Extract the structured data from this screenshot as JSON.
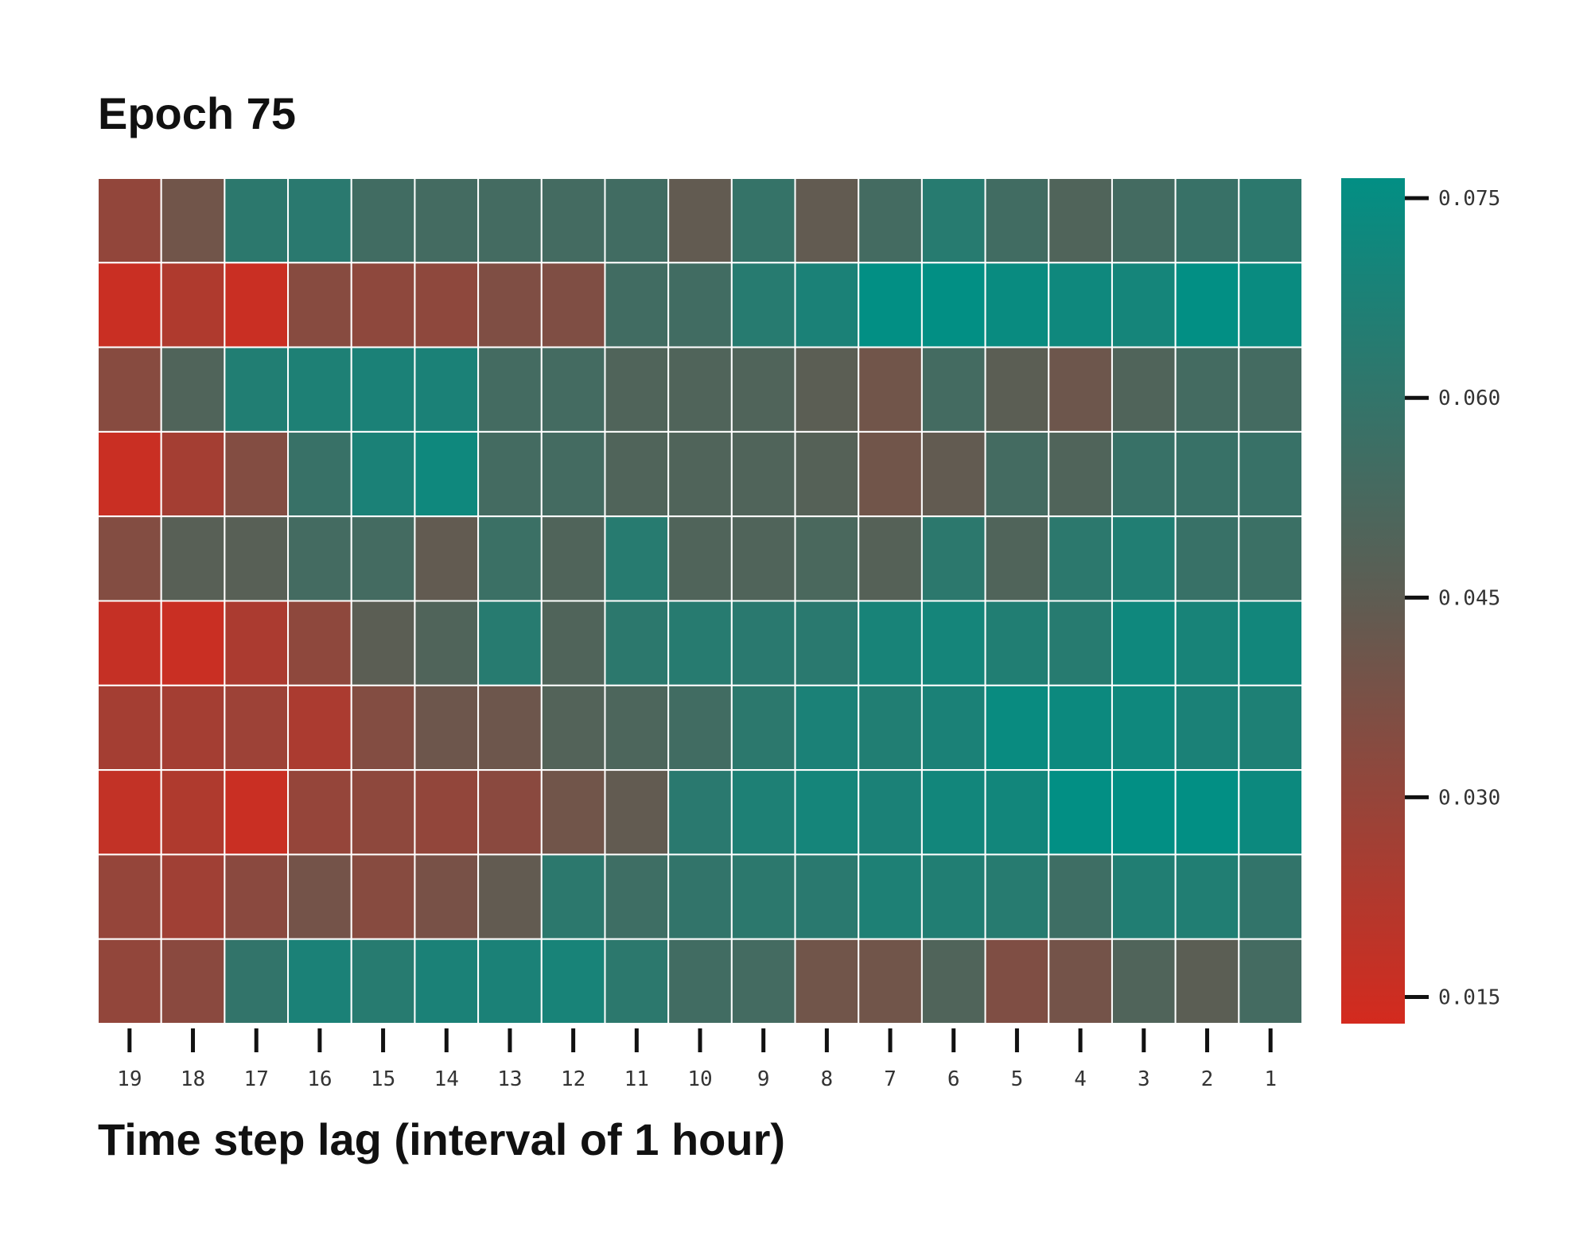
{
  "chart_data": {
    "type": "heatmap",
    "title": "Epoch 75",
    "xlabel": "Time step lag (interval of 1 hour)",
    "ylabel": "",
    "x_categories": [
      "19",
      "18",
      "17",
      "16",
      "15",
      "14",
      "13",
      "12",
      "11",
      "10",
      "9",
      "8",
      "7",
      "6",
      "5",
      "4",
      "3",
      "2",
      "1"
    ],
    "n_rows": 10,
    "values": [
      [
        0.031,
        0.04,
        0.062,
        0.063,
        0.055,
        0.054,
        0.054,
        0.054,
        0.055,
        0.044,
        0.059,
        0.044,
        0.054,
        0.064,
        0.055,
        0.05,
        0.054,
        0.058,
        0.062
      ],
      [
        0.016,
        0.023,
        0.016,
        0.034,
        0.032,
        0.032,
        0.036,
        0.036,
        0.055,
        0.055,
        0.064,
        0.068,
        0.077,
        0.077,
        0.074,
        0.072,
        0.07,
        0.077,
        0.074
      ],
      [
        0.034,
        0.05,
        0.066,
        0.067,
        0.068,
        0.068,
        0.054,
        0.054,
        0.05,
        0.05,
        0.05,
        0.046,
        0.04,
        0.054,
        0.046,
        0.041,
        0.05,
        0.054,
        0.054
      ],
      [
        0.016,
        0.026,
        0.035,
        0.058,
        0.068,
        0.072,
        0.054,
        0.054,
        0.05,
        0.05,
        0.05,
        0.048,
        0.04,
        0.044,
        0.054,
        0.05,
        0.058,
        0.058,
        0.058
      ],
      [
        0.035,
        0.047,
        0.047,
        0.054,
        0.054,
        0.044,
        0.057,
        0.05,
        0.064,
        0.05,
        0.05,
        0.052,
        0.048,
        0.062,
        0.05,
        0.062,
        0.066,
        0.058,
        0.057
      ],
      [
        0.017,
        0.016,
        0.024,
        0.032,
        0.046,
        0.05,
        0.064,
        0.05,
        0.062,
        0.064,
        0.063,
        0.063,
        0.069,
        0.07,
        0.066,
        0.064,
        0.072,
        0.069,
        0.071
      ],
      [
        0.026,
        0.026,
        0.028,
        0.024,
        0.035,
        0.041,
        0.041,
        0.049,
        0.051,
        0.055,
        0.062,
        0.068,
        0.066,
        0.068,
        0.074,
        0.073,
        0.072,
        0.068,
        0.067
      ],
      [
        0.018,
        0.023,
        0.016,
        0.03,
        0.032,
        0.031,
        0.033,
        0.04,
        0.044,
        0.063,
        0.067,
        0.07,
        0.068,
        0.071,
        0.071,
        0.077,
        0.078,
        0.078,
        0.073
      ],
      [
        0.03,
        0.027,
        0.033,
        0.039,
        0.034,
        0.038,
        0.044,
        0.062,
        0.056,
        0.06,
        0.062,
        0.063,
        0.067,
        0.066,
        0.064,
        0.056,
        0.066,
        0.066,
        0.06
      ],
      [
        0.031,
        0.033,
        0.06,
        0.068,
        0.064,
        0.068,
        0.068,
        0.069,
        0.062,
        0.055,
        0.054,
        0.04,
        0.04,
        0.05,
        0.036,
        0.039,
        0.05,
        0.046,
        0.054
      ]
    ],
    "colorbar": {
      "ticks": [
        "0.075",
        "0.060",
        "0.045",
        "0.030",
        "0.015"
      ],
      "range": [
        0.013,
        0.0765
      ]
    },
    "colors": {
      "low": "#d42a1e",
      "mid": "#5f5c52",
      "high": "#028f84",
      "gridline": "#ffffff"
    },
    "grid": true,
    "colorbar_position": "right"
  }
}
